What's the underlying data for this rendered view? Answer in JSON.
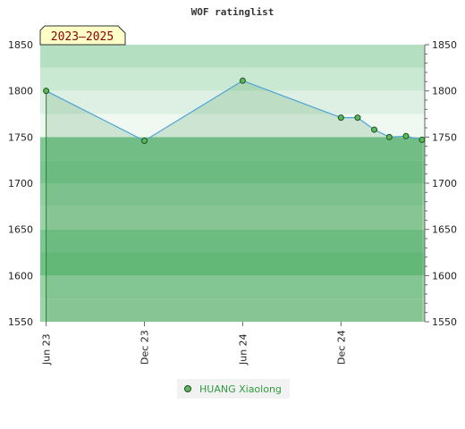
{
  "chart_data": {
    "type": "line",
    "title": "WOF ratinglist",
    "badge": "2023–2025",
    "ylim": [
      1550,
      1850
    ],
    "yticks": [
      1550,
      1600,
      1650,
      1700,
      1750,
      1800,
      1850
    ],
    "xticks": [
      {
        "label": "Jun 23",
        "x": "2023-06-01"
      },
      {
        "label": "Dec 23",
        "x": "2023-12-01"
      },
      {
        "label": "Jun 24",
        "x": "2024-06-01"
      },
      {
        "label": "Dec 24",
        "x": "2024-12-01"
      }
    ],
    "series": [
      {
        "name": "HUANG Xiaolong",
        "color": "#5cb85c",
        "points": [
          {
            "x": "2023-06-01",
            "y": 1800
          },
          {
            "x": "2023-12-01",
            "y": 1746
          },
          {
            "x": "2024-06-01",
            "y": 1811
          },
          {
            "x": "2024-12-01",
            "y": 1771
          },
          {
            "x": "2025-01-01",
            "y": 1771
          },
          {
            "x": "2025-02-01",
            "y": 1758
          },
          {
            "x": "2025-03-01",
            "y": 1750
          },
          {
            "x": "2025-04-01",
            "y": 1751
          },
          {
            "x": "2025-05-01",
            "y": 1747
          }
        ]
      }
    ],
    "grid": true,
    "y_axis": "both sides",
    "legend": "bottom-center",
    "colors": {
      "line": "#4fa3d6",
      "fill": "#7bc48c",
      "marker": "#5cb85c"
    }
  }
}
